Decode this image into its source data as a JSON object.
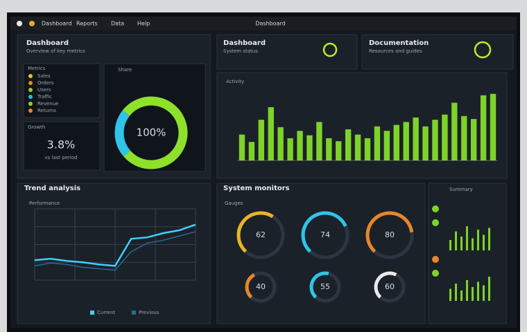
{
  "window": {
    "title": "Dashboard"
  },
  "menu": [
    "Dashboard",
    "Reports",
    "Data",
    "Help"
  ],
  "overview": {
    "title": "Dashboard",
    "subtitle": "Overview of key metrics",
    "list_title": "Metrics",
    "items": [
      {
        "name": "Sales",
        "color": "#e8c02a"
      },
      {
        "name": "Orders",
        "color": "#e8862a"
      },
      {
        "name": "Users",
        "color": "#8fd12c"
      },
      {
        "name": "Traffic",
        "color": "#2fb7d8"
      },
      {
        "name": "Revenue",
        "color": "#8fd12c"
      },
      {
        "name": "Returns",
        "color": "#e8862a"
      }
    ],
    "stat": {
      "label": "Growth",
      "value": "3.8%",
      "note": "vs last period"
    },
    "donut": {
      "title": "Share",
      "total": "100%",
      "values": [
        78,
        22
      ],
      "colors": [
        "#8fe02a",
        "#2fc4e8"
      ]
    }
  },
  "status": {
    "title": "Dashboard",
    "subtitle": "System status"
  },
  "docs": {
    "title": "Documentation",
    "subtitle": "Resources and guides"
  },
  "bars": {
    "title": "Activity",
    "color": "#7ed32a",
    "ylim": [
      0,
      100
    ],
    "values": [
      35,
      25,
      55,
      72,
      45,
      30,
      40,
      34,
      52,
      30,
      26,
      42,
      35,
      30,
      46,
      40,
      48,
      52,
      58,
      46,
      55,
      62,
      78,
      60,
      56,
      88,
      90
    ]
  },
  "line": {
    "title": "Performance",
    "panel_title": "Trend analysis",
    "ylim": [
      0,
      100
    ],
    "series": [
      {
        "name": "Current",
        "color": "#3fd0ff",
        "values": [
          28,
          30,
          27,
          25,
          22,
          20,
          58,
          60,
          66,
          70,
          78
        ]
      },
      {
        "name": "Previous",
        "color": "#1f6f90",
        "values": [
          20,
          24,
          22,
          18,
          16,
          14,
          40,
          52,
          56,
          62,
          68
        ]
      }
    ]
  },
  "gauges": {
    "title": "Gauges",
    "panel_title": "System monitors",
    "values": [
      62,
      74,
      80,
      40,
      55,
      60
    ],
    "labels": [
      "62",
      "74",
      "80",
      "40",
      "55",
      "60"
    ],
    "colors": [
      "#e8b42a",
      "#2fc4e8",
      "#e8862a",
      "#e8862a",
      "#2fc4e8",
      "#e8e8e8"
    ]
  },
  "mini": {
    "title": "Summary",
    "top": [
      30,
      55,
      40,
      70,
      35,
      60,
      45,
      65
    ],
    "bottom": [
      35,
      50,
      30,
      60,
      40,
      55,
      45,
      70
    ],
    "color": "#7ed32a"
  }
}
